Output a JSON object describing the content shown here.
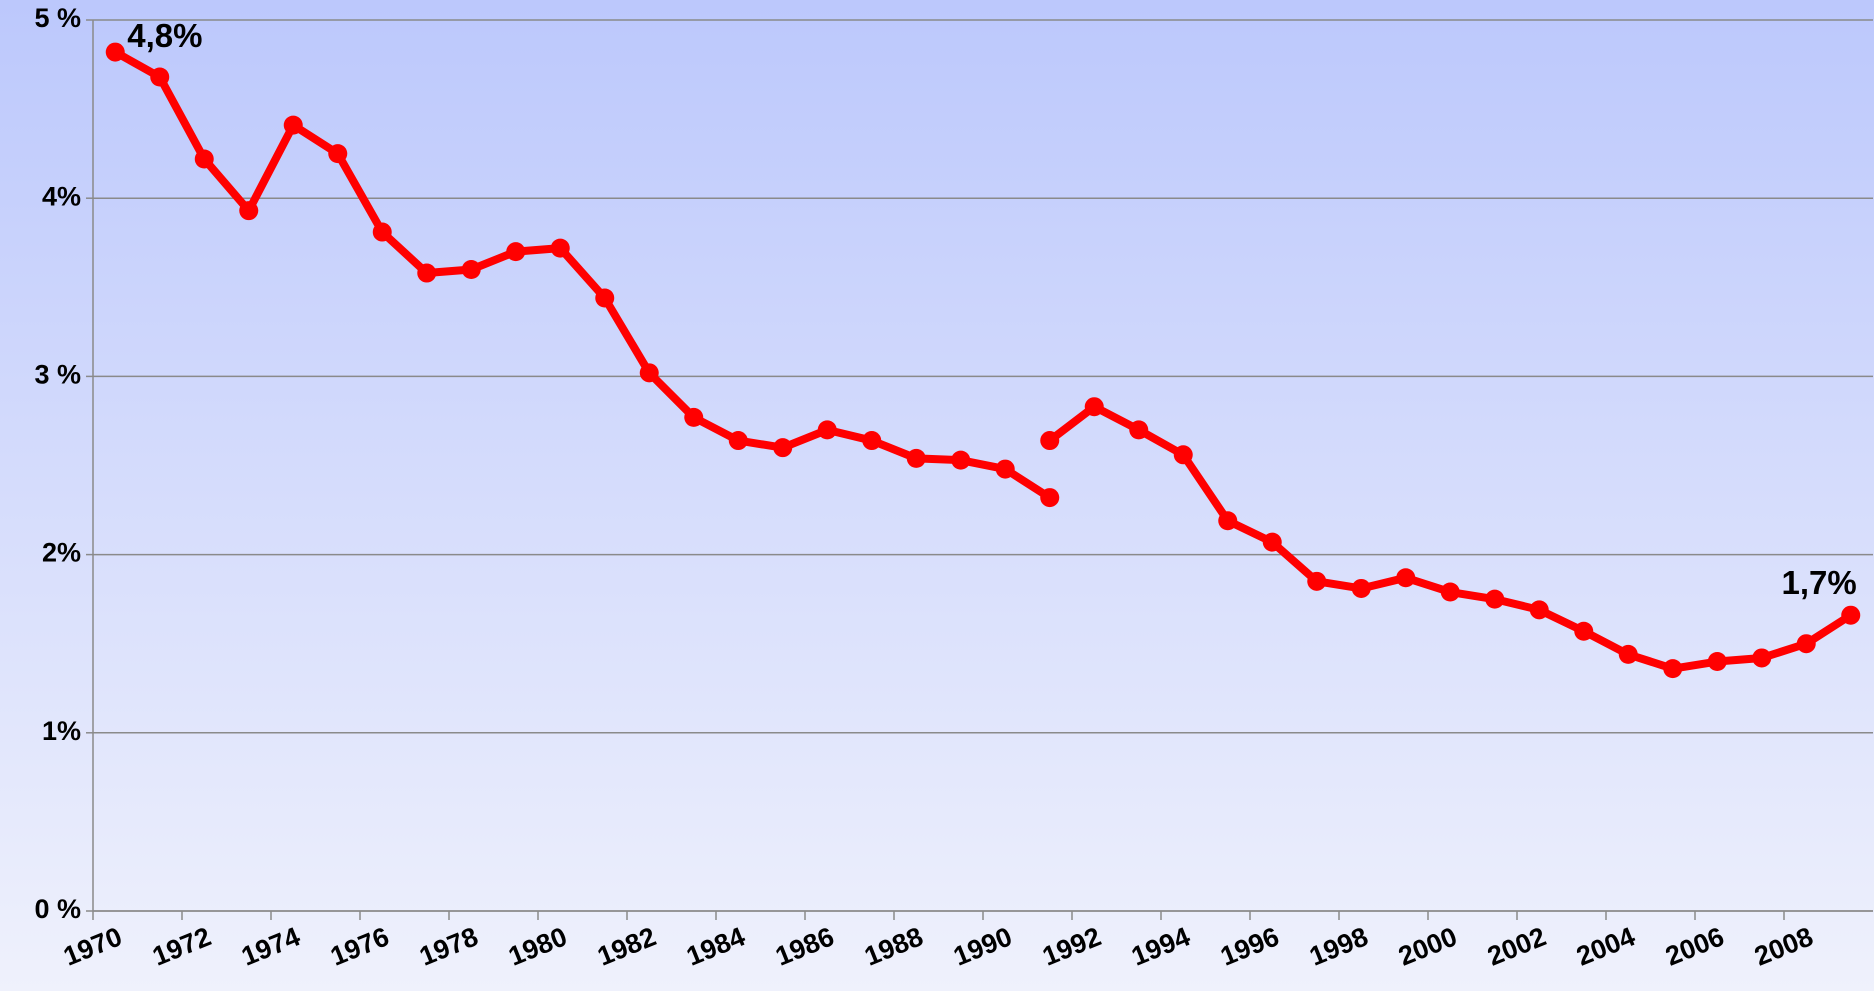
{
  "chart_data": {
    "type": "line",
    "categories": [
      "1970",
      null,
      "1972",
      null,
      "1974",
      null,
      "1976",
      null,
      "1978",
      null,
      "1980",
      null,
      "1982",
      null,
      "1984",
      null,
      "1986",
      null,
      "1988",
      null,
      "1990",
      null,
      "1992",
      null,
      "1994",
      null,
      "1996",
      null,
      "1998",
      null,
      "2000",
      null,
      "2002",
      null,
      "2004",
      null,
      "2006",
      null,
      "2008",
      null
    ],
    "series": [
      {
        "color": "#ff0000",
        "values": [
          4.82,
          4.68,
          4.22,
          3.93,
          4.41,
          4.25,
          3.81,
          3.58,
          3.6,
          3.7,
          3.72,
          3.44,
          3.02,
          2.77,
          2.64,
          2.6,
          2.7,
          2.64,
          2.54,
          2.53,
          2.48,
          2.32,
          null,
          null,
          null,
          null,
          null,
          null,
          null,
          null,
          null,
          null,
          null,
          null,
          null,
          null,
          null,
          null,
          null,
          null
        ],
        "value_labels": [
          "4,8%",
          null,
          null,
          null,
          null,
          null,
          null,
          null,
          null,
          null,
          null,
          null,
          null,
          null,
          null,
          null,
          null,
          null,
          null,
          null,
          null,
          null,
          null,
          null,
          null,
          null,
          null,
          null,
          null,
          null,
          null,
          null,
          null,
          null,
          null,
          null,
          null,
          null,
          null,
          null
        ]
      },
      {
        "color": "#ff0000",
        "values": [
          null,
          null,
          null,
          null,
          null,
          null,
          null,
          null,
          null,
          null,
          null,
          null,
          null,
          null,
          null,
          null,
          null,
          null,
          null,
          null,
          null,
          2.64,
          2.83,
          2.7,
          2.56,
          2.19,
          2.07,
          1.85,
          1.81,
          1.87,
          1.79,
          1.75,
          1.69,
          1.57,
          1.44,
          1.36,
          1.4,
          1.42,
          1.5,
          1.66
        ],
        "value_labels": [
          null,
          null,
          null,
          null,
          null,
          null,
          null,
          null,
          null,
          null,
          null,
          null,
          null,
          null,
          null,
          null,
          null,
          null,
          null,
          null,
          null,
          null,
          null,
          null,
          null,
          null,
          null,
          null,
          null,
          null,
          null,
          null,
          null,
          null,
          null,
          null,
          null,
          null,
          null,
          "1,7%"
        ]
      }
    ],
    "ylim": [
      0,
      5
    ],
    "yticks": [
      {
        "value": 0,
        "label": "0 %"
      },
      {
        "value": 1,
        "label": "1%"
      },
      {
        "value": 2,
        "label": "2%"
      },
      {
        "value": 3,
        "label": "3 %"
      },
      {
        "value": 4,
        "label": "4%"
      },
      {
        "value": 5,
        "label": "5 %"
      }
    ],
    "grid": true
  }
}
